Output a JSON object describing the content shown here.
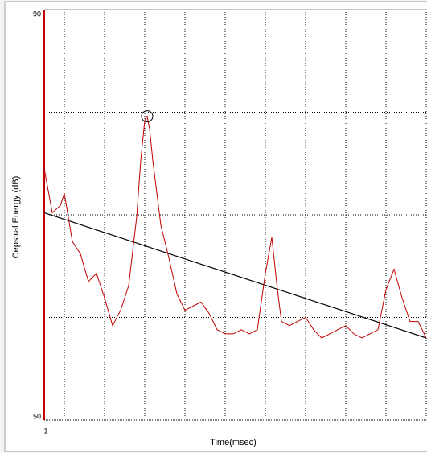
{
  "chart_data": {
    "type": "line",
    "y_label": "Cepstral Energy (dB)",
    "x_label": "Time(msec)",
    "xlim": [
      1,
      20
    ],
    "ylim": [
      50,
      90
    ],
    "xticks": [
      1,
      20
    ],
    "yticks": [
      50,
      90
    ],
    "xgrid": [
      2,
      4,
      6,
      8,
      10,
      12,
      14,
      16,
      18,
      20
    ],
    "ygrid": [
      60,
      70,
      80
    ],
    "grid": true,
    "x": [
      1,
      1.4,
      1.8,
      2,
      2.4,
      2.8,
      3.2,
      3.6,
      4,
      4.4,
      4.8,
      5.2,
      5.6,
      5.8,
      6,
      6.12,
      6.24,
      6.4,
      6.8,
      7.2,
      7.6,
      8,
      8.4,
      8.8,
      9.2,
      9.6,
      10,
      10.4,
      10.8,
      11.2,
      11.6,
      12,
      12.32,
      12.6,
      12.8,
      13.2,
      13.6,
      14,
      14.4,
      14.8,
      15.2,
      15.6,
      16,
      16.4,
      16.8,
      17.2,
      17.6,
      18,
      18.4,
      18.8,
      19.2,
      19.6,
      20
    ],
    "series": [
      {
        "color": "#c00000",
        "values": [
          74.5,
          70.2,
          70.9,
          72.1,
          67.4,
          66.2,
          63.5,
          64.3,
          61.9,
          59.2,
          60.7,
          63.1,
          69.8,
          75.3,
          79.2,
          79.6,
          78.4,
          75.3,
          69.0,
          65.8,
          62.3,
          60.7,
          61.1,
          61.5,
          60.4,
          58.8,
          58.4,
          58.4,
          58.8,
          58.4,
          58.8,
          64.3,
          67.8,
          62.7,
          59.6,
          59.2,
          59.6,
          60.0,
          58.8,
          58.0,
          58.4,
          58.8,
          59.2,
          58.4,
          58.0,
          58.4,
          58.8,
          62.7,
          64.7,
          61.9,
          59.6,
          59.6,
          58.0
        ]
      }
    ],
    "trend": {
      "color": "#000000",
      "x": [
        1,
        20
      ],
      "values": [
        70.2,
        58.0
      ]
    },
    "peak": {
      "x": 6.12,
      "value": 79.6
    }
  }
}
